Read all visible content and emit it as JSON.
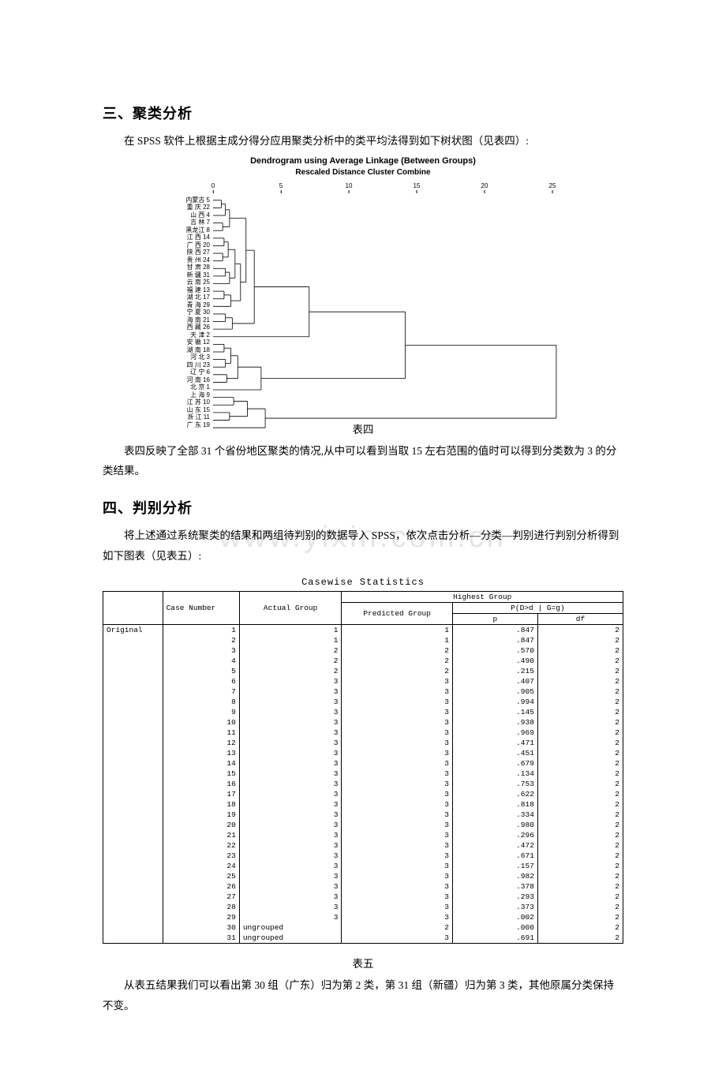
{
  "heading3": "三、聚类分析",
  "para3": "在 SPSS 软件上根据主成分得分应用聚类分析中的类平均法得到如下树状图（见表四）:",
  "dendrogram": {
    "title1": "Dendrogram using Average Linkage (Between Groups)",
    "title2": "Rescaled Distance Cluster Combine",
    "axis_ticks": [
      {
        "pos": 0,
        "label": "0"
      },
      {
        "pos": 5,
        "label": "5"
      },
      {
        "pos": 10,
        "label": "10"
      },
      {
        "pos": 15,
        "label": "15"
      },
      {
        "pos": 20,
        "label": "20"
      },
      {
        "pos": 25,
        "label": "25"
      }
    ],
    "axis_max": 25,
    "leaves": [
      "内蒙古 5",
      "重 庆 22",
      "山 西 4",
      "吉 林 7",
      "黑龙江 8",
      "江 西 14",
      "广 西 20",
      "陕 西 27",
      "贵 州 24",
      "甘 肃 28",
      "新 疆 31",
      "云 南 25",
      "福 建 13",
      "湖 北 17",
      "青 海 29",
      "宁 夏 30",
      "海 南 21",
      "西 藏 26",
      "天 津 2",
      "安 徽 12",
      "湖 南 18",
      "河 北 3",
      "四 川 23",
      "辽 宁 6",
      "河 南 16",
      "北 京 1",
      "上 海 9",
      "江 苏 10",
      "山 东 15",
      "浙 江 11",
      "广 东 19"
    ],
    "merges": [
      {
        "a": 0,
        "b": 1,
        "h": 0.6
      },
      {
        "a": 2,
        "b": -1,
        "h": 0.9
      },
      {
        "a": 3,
        "b": 4,
        "h": 0.7
      },
      {
        "a": -2,
        "b": -3,
        "h": 1.2
      },
      {
        "a": 5,
        "b": 6,
        "h": 0.8
      },
      {
        "a": 7,
        "b": 8,
        "h": 0.7
      },
      {
        "a": -5,
        "b": -6,
        "h": 1.1
      },
      {
        "a": 9,
        "b": 10,
        "h": 0.9
      },
      {
        "a": 11,
        "b": -8,
        "h": 1.2
      },
      {
        "a": -7,
        "b": -9,
        "h": 1.6
      },
      {
        "a": 12,
        "b": 13,
        "h": 0.8
      },
      {
        "a": 14,
        "b": -11,
        "h": 1.3
      },
      {
        "a": -10,
        "b": -12,
        "h": 2.0
      },
      {
        "a": -4,
        "b": -13,
        "h": 2.4
      },
      {
        "a": 15,
        "b": 16,
        "h": 0.9
      },
      {
        "a": 17,
        "b": -15,
        "h": 1.4
      },
      {
        "a": -14,
        "b": -16,
        "h": 3.0
      },
      {
        "a": 18,
        "b": -17,
        "h": 7.0
      },
      {
        "a": 19,
        "b": 20,
        "h": 0.8
      },
      {
        "a": 21,
        "b": 22,
        "h": 0.9
      },
      {
        "a": -19,
        "b": -20,
        "h": 1.3
      },
      {
        "a": 23,
        "b": 24,
        "h": 1.0
      },
      {
        "a": -21,
        "b": -22,
        "h": 1.8
      },
      {
        "a": 25,
        "b": -23,
        "h": 3.5
      },
      {
        "a": -18,
        "b": -24,
        "h": 14.0
      },
      {
        "a": 26,
        "b": 27,
        "h": 1.5
      },
      {
        "a": 28,
        "b": 29,
        "h": 1.2
      },
      {
        "a": -26,
        "b": -27,
        "h": 2.5
      },
      {
        "a": 30,
        "b": -28,
        "h": 3.8
      },
      {
        "a": -25,
        "b": -29,
        "h": 25.0
      }
    ],
    "line_color": "#000000",
    "background": "#ffffff"
  },
  "caption4": "表四",
  "para4": "表四反映了全部 31 个省份地区聚类的情况,从中可以看到当取 15 左右范围的值时可以得到分类数为 3 的分类结果。",
  "heading4": "四、判别分析",
  "para5a": "将上述通过系统聚类的结果和两组待判别的数据导入 SPSS，依次点击分析—分类—判别进行判别分析得到如下图表（见表五）:",
  "watermark": "www.yixin.com.cn",
  "casewise": {
    "title": "Casewise Statistics",
    "headers": {
      "case_number": "Case Number",
      "highest_group": "Highest Group",
      "actual_group": "Actual Group",
      "predicted_group": "Predicted Group",
      "p_header": "P(D>d | G=g)",
      "p": "p",
      "df": "df"
    },
    "row_label": "Original",
    "rows": [
      {
        "n": 1,
        "a": "1",
        "pg": 1,
        "p": ".847",
        "df": 2
      },
      {
        "n": 2,
        "a": "1",
        "pg": 1,
        "p": ".847",
        "df": 2
      },
      {
        "n": 3,
        "a": "2",
        "pg": 2,
        "p": ".570",
        "df": 2
      },
      {
        "n": 4,
        "a": "2",
        "pg": 2,
        "p": ".490",
        "df": 2
      },
      {
        "n": 5,
        "a": "2",
        "pg": 2,
        "p": ".215",
        "df": 2
      },
      {
        "n": 6,
        "a": "3",
        "pg": 3,
        "p": ".407",
        "df": 2
      },
      {
        "n": 7,
        "a": "3",
        "pg": 3,
        "p": ".905",
        "df": 2
      },
      {
        "n": 8,
        "a": "3",
        "pg": 3,
        "p": ".994",
        "df": 2
      },
      {
        "n": 9,
        "a": "3",
        "pg": 3,
        "p": ".145",
        "df": 2
      },
      {
        "n": 10,
        "a": "3",
        "pg": 3,
        "p": ".938",
        "df": 2
      },
      {
        "n": 11,
        "a": "3",
        "pg": 3,
        "p": ".969",
        "df": 2
      },
      {
        "n": 12,
        "a": "3",
        "pg": 3,
        "p": ".471",
        "df": 2
      },
      {
        "n": 13,
        "a": "3",
        "pg": 3,
        "p": ".451",
        "df": 2
      },
      {
        "n": 14,
        "a": "3",
        "pg": 3,
        "p": ".679",
        "df": 2
      },
      {
        "n": 15,
        "a": "3",
        "pg": 3,
        "p": ".134",
        "df": 2
      },
      {
        "n": 16,
        "a": "3",
        "pg": 3,
        "p": ".753",
        "df": 2
      },
      {
        "n": 17,
        "a": "3",
        "pg": 3,
        "p": ".622",
        "df": 2
      },
      {
        "n": 18,
        "a": "3",
        "pg": 3,
        "p": ".818",
        "df": 2
      },
      {
        "n": 19,
        "a": "3",
        "pg": 3,
        "p": ".334",
        "df": 2
      },
      {
        "n": 20,
        "a": "3",
        "pg": 3,
        "p": ".980",
        "df": 2
      },
      {
        "n": 21,
        "a": "3",
        "pg": 3,
        "p": ".296",
        "df": 2
      },
      {
        "n": 22,
        "a": "3",
        "pg": 3,
        "p": ".472",
        "df": 2
      },
      {
        "n": 23,
        "a": "3",
        "pg": 3,
        "p": ".671",
        "df": 2
      },
      {
        "n": 24,
        "a": "3",
        "pg": 3,
        "p": ".157",
        "df": 2
      },
      {
        "n": 25,
        "a": "3",
        "pg": 3,
        "p": ".982",
        "df": 2
      },
      {
        "n": 26,
        "a": "3",
        "pg": 3,
        "p": ".378",
        "df": 2
      },
      {
        "n": 27,
        "a": "3",
        "pg": 3,
        "p": ".293",
        "df": 2
      },
      {
        "n": 28,
        "a": "3",
        "pg": 3,
        "p": ".373",
        "df": 2
      },
      {
        "n": 29,
        "a": "3",
        "pg": 3,
        "p": ".002",
        "df": 2
      },
      {
        "n": 30,
        "a": "ungrouped",
        "pg": 2,
        "p": ".000",
        "df": 2
      },
      {
        "n": 31,
        "a": "ungrouped",
        "pg": 3,
        "p": ".691",
        "df": 2
      }
    ]
  },
  "caption5": "表五",
  "para6": "从表五结果我们可以看出第 30 组（广东）归为第 2 类，第 31 组（新疆）归为第 3 类，其他原属分类保持不变。"
}
